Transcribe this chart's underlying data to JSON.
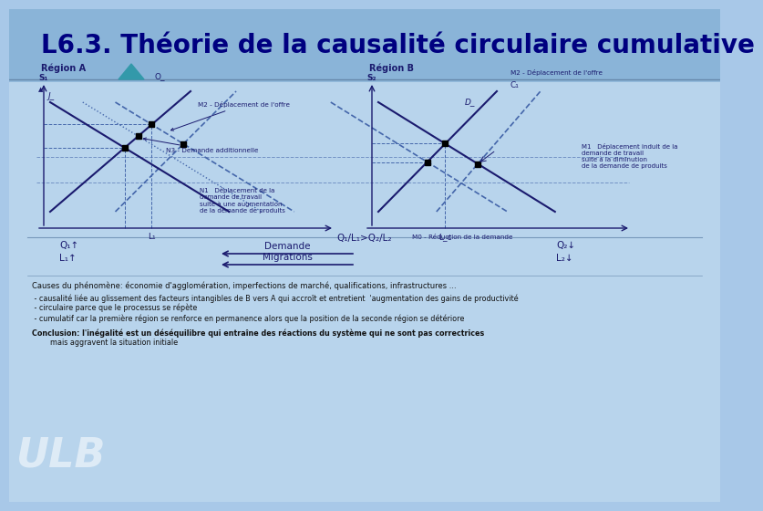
{
  "title": "L6.3. Théorie de la causalité circulaire cumulative",
  "title_color": "#000080",
  "title_fontsize": 20,
  "bg_color": "#a8c8e8",
  "bg_lower": "#b8d4ec",
  "line_color": "#1a1a6e",
  "dashed_color": "#4466aa",
  "annot_color": "#1a1a6e",
  "region_A": "Région A",
  "region_B": "Région B",
  "s1_label": "S₁",
  "s2_label": "S₂",
  "o_label": "O_",
  "j_label": "J_",
  "d_label": "D_",
  "l1_axis": "L₁",
  "l2_axis": "L₂",
  "m2_offre_A": "M2 - Déplacement de l'offre",
  "m2_offre_B": "M2 - Déplacement de l'offre",
  "c1_label": "C₁",
  "n3_label": "N3 - Demande additionnelle",
  "n1_text": "N1   Déplacement de la\ndemande de travail\nsuite à une augmentation\nde la demande de produits",
  "m1_text_B": "M1   Déplacement induit de la\ndemande de travail\nsuite à la diminution\nde la demande de produits",
  "m0_label": "M0 - Réduction de la demande",
  "q1l1_text": "Q₁/L₁>Q₂/L₂",
  "demand_text": "Demande",
  "migr_text": "Migrations",
  "q1l_label": "Q₁↑",
  "l1up_label": "L₁↑",
  "q2l_label": "Q₂↓",
  "l2down_label": "L₂↓",
  "causes_text": "Causes du phénomène: économie d'agglomération, imperfections de marché, qualifications, infrastructures ...",
  "bullet1": " - causalité liée au glissement des facteurs intangibles de B vers A qui accroît et entretient  'augmentation des gains de productivité",
  "bullet2": " - circulaire parce que le processus se répète",
  "bullet3": " - cumulatif car la première région se renforce en permanence alors que la position de la seconde région se détériore",
  "concl_line1": "Conclusion: l'inégalité est un déséquilibre qui entraîne des réactions du système qui ne sont pas correctrices",
  "concl_line2": "        mais aggravent la situation initiale"
}
